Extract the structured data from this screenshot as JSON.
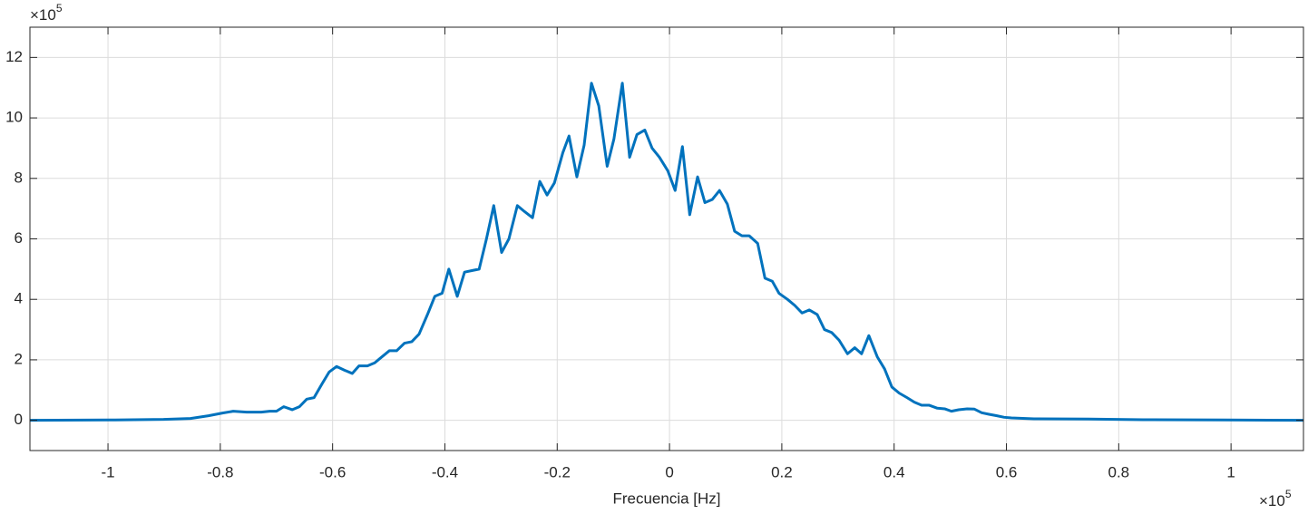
{
  "chart_data": {
    "type": "line",
    "xlabel": "Frecuencia [Hz]",
    "x_multiplier": {
      "base": "×10",
      "exponent": "5"
    },
    "y_multiplier": {
      "base": "×10",
      "exponent": "5"
    },
    "color": "#0072bd",
    "grid": true,
    "xlim": [
      -1.139,
      1.129
    ],
    "ylim": [
      -1,
      13
    ],
    "xticks": [
      -1,
      -0.8,
      -0.6,
      -0.4,
      -0.2,
      0,
      0.2,
      0.4,
      0.6,
      0.8,
      1
    ],
    "yticks": [
      0,
      2,
      4,
      6,
      8,
      10,
      12
    ],
    "x": [
      -1.139,
      -0.998,
      -0.901,
      -0.853,
      -0.821,
      -0.796,
      -0.777,
      -0.753,
      -0.727,
      -0.712,
      -0.7,
      -0.687,
      -0.672,
      -0.659,
      -0.646,
      -0.633,
      -0.619,
      -0.606,
      -0.593,
      -0.578,
      -0.565,
      -0.553,
      -0.538,
      -0.525,
      -0.512,
      -0.499,
      -0.486,
      -0.472,
      -0.459,
      -0.446,
      -0.431,
      -0.418,
      -0.405,
      -0.393,
      -0.378,
      -0.365,
      -0.352,
      -0.339,
      -0.326,
      -0.313,
      -0.299,
      -0.286,
      -0.271,
      -0.258,
      -0.244,
      -0.231,
      -0.218,
      -0.205,
      -0.19,
      -0.179,
      -0.165,
      -0.152,
      -0.139,
      -0.126,
      -0.111,
      -0.099,
      -0.084,
      -0.071,
      -0.058,
      -0.044,
      -0.031,
      -0.018,
      -0.003,
      0.01,
      0.023,
      0.036,
      0.05,
      0.063,
      0.076,
      0.089,
      0.103,
      0.116,
      0.129,
      0.142,
      0.157,
      0.17,
      0.183,
      0.195,
      0.21,
      0.223,
      0.236,
      0.249,
      0.263,
      0.276,
      0.289,
      0.302,
      0.317,
      0.33,
      0.342,
      0.355,
      0.37,
      0.383,
      0.396,
      0.409,
      0.423,
      0.436,
      0.449,
      0.462,
      0.477,
      0.49,
      0.502,
      0.515,
      0.53,
      0.543,
      0.556,
      0.569,
      0.583,
      0.596,
      0.609,
      0.649,
      0.746,
      0.843,
      0.989,
      1.129
    ],
    "values": [
      0,
      0.01,
      0.03,
      0.06,
      0.15,
      0.24,
      0.3,
      0.27,
      0.27,
      0.3,
      0.3,
      0.45,
      0.35,
      0.45,
      0.7,
      0.75,
      1.2,
      1.6,
      1.78,
      1.65,
      1.55,
      1.8,
      1.8,
      1.9,
      2.1,
      2.3,
      2.3,
      2.55,
      2.6,
      2.85,
      3.5,
      4.1,
      4.2,
      5.0,
      4.1,
      4.9,
      4.95,
      5.0,
      6.0,
      7.1,
      5.55,
      6.0,
      7.1,
      6.9,
      6.7,
      7.9,
      7.45,
      7.85,
      8.85,
      9.4,
      8.05,
      9.1,
      11.15,
      10.4,
      8.4,
      9.3,
      11.15,
      8.7,
      9.45,
      9.6,
      9.0,
      8.7,
      8.25,
      7.6,
      9.05,
      6.8,
      8.05,
      7.2,
      7.3,
      7.6,
      7.15,
      6.25,
      6.1,
      6.1,
      5.85,
      4.7,
      4.6,
      4.2,
      4.0,
      3.8,
      3.55,
      3.65,
      3.5,
      3.0,
      2.9,
      2.65,
      2.2,
      2.4,
      2.2,
      2.8,
      2.1,
      1.7,
      1.1,
      0.9,
      0.75,
      0.6,
      0.5,
      0.5,
      0.4,
      0.38,
      0.3,
      0.35,
      0.38,
      0.37,
      0.25,
      0.2,
      0.15,
      0.1,
      0.08,
      0.05,
      0.04,
      0.02,
      0.01,
      0
    ]
  }
}
